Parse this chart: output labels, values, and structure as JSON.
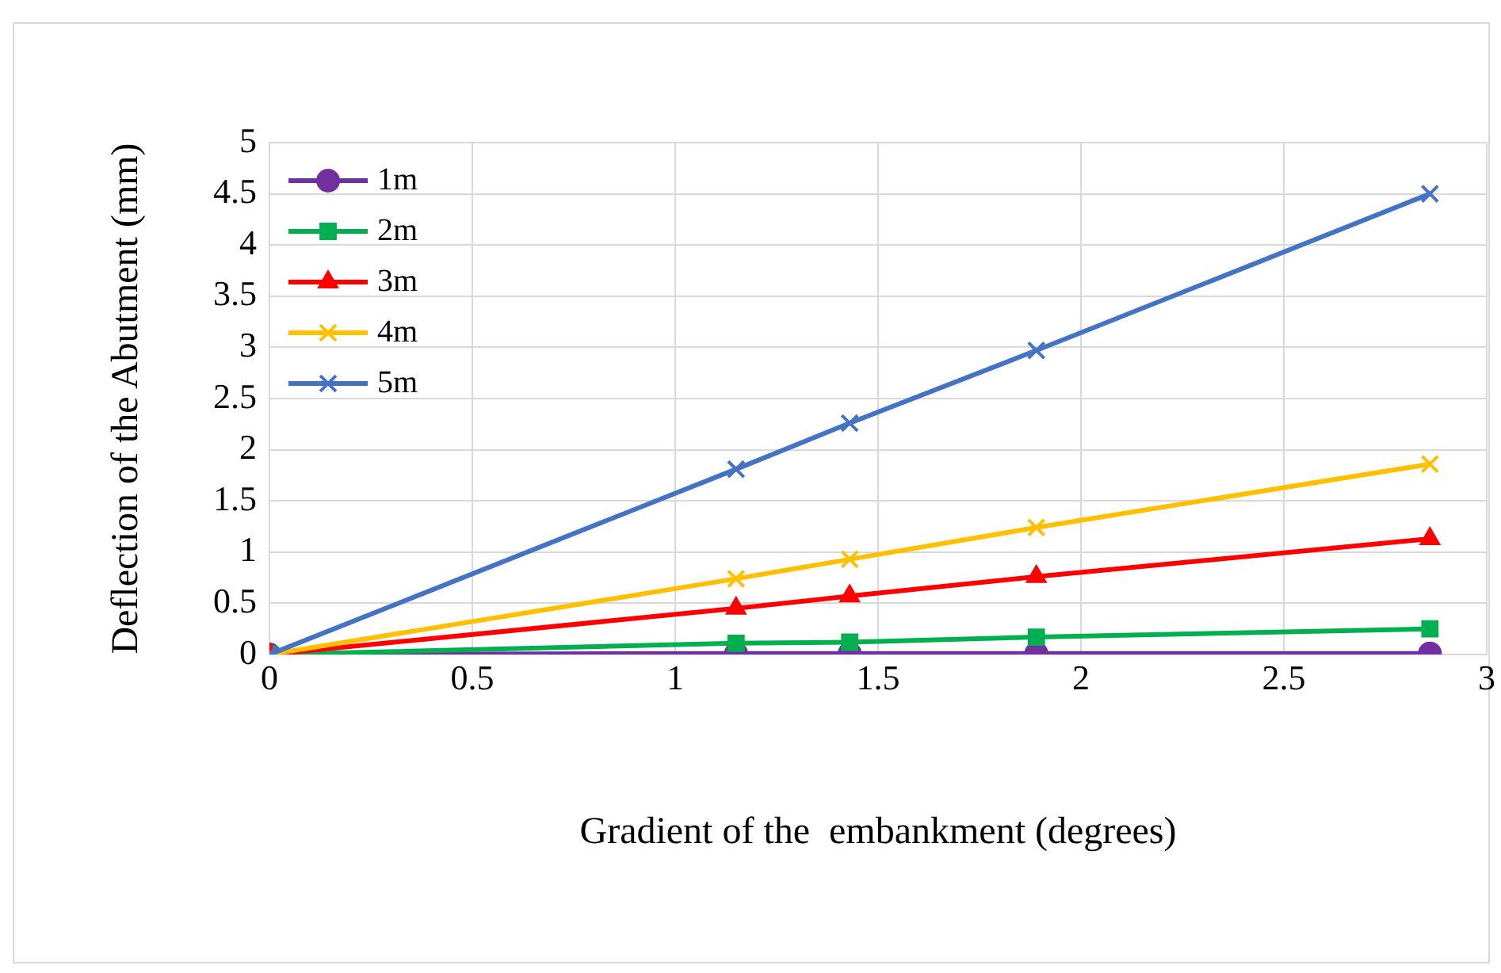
{
  "chart_data": {
    "type": "line",
    "xlabel": "Gradient of the  embankment (degrees)",
    "ylabel": "Deflection of the Abutment (mm)",
    "x": [
      0,
      1.15,
      1.43,
      1.89,
      2.86
    ],
    "series": [
      {
        "name": "1m",
        "color": "#7030a0",
        "marker": "circle",
        "values": [
          0,
          0.01,
          0.01,
          0.01,
          0.01
        ]
      },
      {
        "name": "2m",
        "color": "#00b050",
        "marker": "square",
        "values": [
          0,
          0.11,
          0.12,
          0.17,
          0.25
        ]
      },
      {
        "name": "3m",
        "color": "#ff0000",
        "marker": "triangle",
        "values": [
          0,
          0.45,
          0.57,
          0.76,
          1.13
        ]
      },
      {
        "name": "4m",
        "color": "#ffc000",
        "marker": "cross",
        "values": [
          0,
          0.74,
          0.93,
          1.24,
          1.86
        ]
      },
      {
        "name": "5m",
        "color": "#4472c4",
        "marker": "cross",
        "values": [
          0,
          1.81,
          2.26,
          2.97,
          4.5
        ]
      }
    ],
    "xlim": [
      0,
      3
    ],
    "xticks": [
      0,
      0.5,
      1,
      1.5,
      2,
      2.5,
      3
    ],
    "ylim": [
      0,
      5
    ],
    "yticks": [
      0,
      0.5,
      1,
      1.5,
      2,
      2.5,
      3,
      3.5,
      4,
      4.5,
      5
    ],
    "grid": true,
    "legend": "top left",
    "line_style": "solid"
  }
}
